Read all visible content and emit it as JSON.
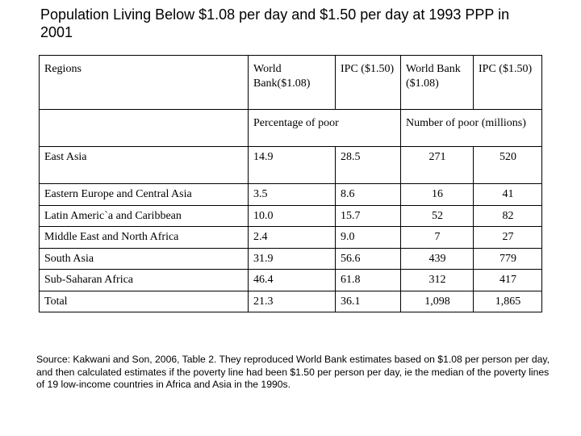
{
  "title": "Population Living Below $1.08 per day and $1.50 per day at 1993 PPP in 2001",
  "table": {
    "header": {
      "regions": "Regions",
      "col1": "World Bank($1.08)",
      "col2": "IPC ($1.50)",
      "col3": "World Bank ($1.08)",
      "col4": "IPC ($1.50)",
      "group1": "Percentage of poor",
      "group2": "Number of poor (millions)"
    },
    "rows": [
      {
        "region": "East Asia",
        "wb_pct": "14.9",
        "ipc_pct": "28.5",
        "wb_num": "271",
        "ipc_num": "520"
      },
      {
        "region": "Eastern Europe and Central Asia",
        "wb_pct": "3.5",
        "ipc_pct": "8.6",
        "wb_num": "16",
        "ipc_num": "41"
      },
      {
        "region": "Latin Americ`a and Caribbean",
        "wb_pct": "10.0",
        "ipc_pct": "15.7",
        "wb_num": "52",
        "ipc_num": "82"
      },
      {
        "region": "Middle East and North Africa",
        "wb_pct": "2.4",
        "ipc_pct": "9.0",
        "wb_num": "7",
        "ipc_num": "27"
      },
      {
        "region": "South Asia",
        "wb_pct": "31.9",
        "ipc_pct": "56.6",
        "wb_num": "439",
        "ipc_num": "779"
      },
      {
        "region": "Sub-Saharan Africa",
        "wb_pct": "46.4",
        "ipc_pct": "61.8",
        "wb_num": "312",
        "ipc_num": "417"
      },
      {
        "region": "Total",
        "wb_pct": "21.3",
        "ipc_pct": "36.1",
        "wb_num": "1,098",
        "ipc_num": "1,865"
      }
    ]
  },
  "source": "Source: Kakwani and Son, 2006, Table 2. They reproduced World Bank estimates based on $1.08 per person per day, and then calculated estimates if the poverty line had been $1.50 per person per day, ie the median of the poverty lines of 19 low-income countries in Africa and Asia in the 1990s."
}
